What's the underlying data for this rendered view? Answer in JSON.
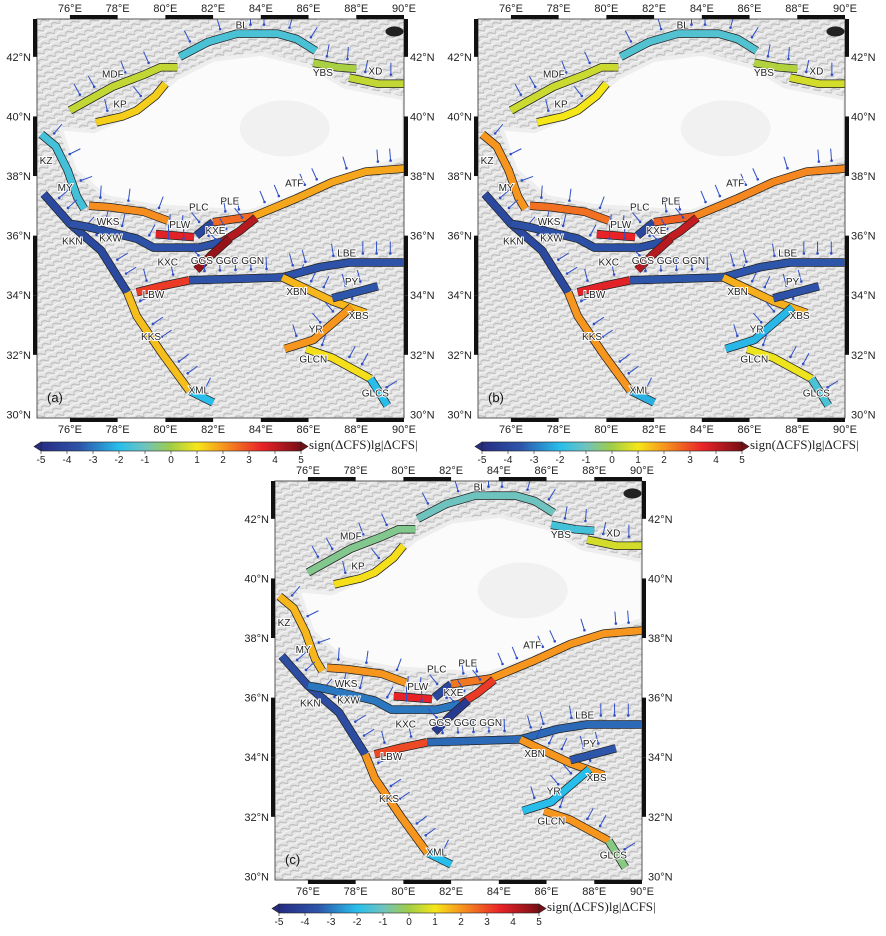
{
  "figure": {
    "lon_ticks": [
      "76°E",
      "78°E",
      "80°E",
      "82°E",
      "84°E",
      "86°E",
      "88°E",
      "90°E"
    ],
    "lat_ticks": [
      "30°N",
      "32°N",
      "34°N",
      "36°N",
      "38°N",
      "40°N",
      "42°N"
    ],
    "colorbar": {
      "label": "sign(ΔCFS)lg|ΔCFS|",
      "ticks": [
        "-5",
        "-4",
        "-3",
        "-2",
        "-1",
        "0",
        "1",
        "2",
        "3",
        "4",
        "5"
      ],
      "range": [
        -5,
        5
      ]
    },
    "colors": {
      "arrow": "#2f4fc9",
      "trace": "#222222",
      "frame": "#111111"
    }
  },
  "faults": [
    {
      "id": "BL",
      "label": "BL",
      "label_at": [
        83.2,
        42.95
      ],
      "path": [
        [
          80.6,
          42.0
        ],
        [
          81.8,
          42.5
        ],
        [
          83.0,
          42.78
        ],
        [
          84.7,
          42.78
        ],
        [
          85.5,
          42.6
        ],
        [
          86.3,
          42.2
        ]
      ]
    },
    {
      "id": "MDF",
      "label": "MDF",
      "label_at": [
        77.8,
        41.3
      ],
      "path": [
        [
          76.0,
          40.2
        ],
        [
          77.8,
          41.0
        ],
        [
          79.1,
          41.4
        ],
        [
          79.8,
          41.65
        ],
        [
          80.5,
          41.65
        ]
      ]
    },
    {
      "id": "KP",
      "label": "KP",
      "label_at": [
        78.1,
        40.3
      ],
      "path": [
        [
          77.1,
          39.8
        ],
        [
          78.2,
          40.0
        ],
        [
          78.8,
          40.2
        ],
        [
          79.6,
          40.7
        ],
        [
          80.0,
          41.1
        ]
      ]
    },
    {
      "id": "YBS",
      "label": "YBS",
      "label_at": [
        86.6,
        41.35
      ],
      "path": [
        [
          86.2,
          41.8
        ],
        [
          87.2,
          41.65
        ],
        [
          88.0,
          41.6
        ]
      ]
    },
    {
      "id": "XD",
      "label": "XD",
      "label_at": [
        88.8,
        41.4
      ],
      "path": [
        [
          87.7,
          41.3
        ],
        [
          88.9,
          41.1
        ],
        [
          90.0,
          41.1
        ]
      ]
    },
    {
      "id": "KZ",
      "label": "KZ",
      "label_at": [
        75.0,
        38.4
      ],
      "path": [
        [
          74.8,
          39.4
        ],
        [
          75.4,
          39.0
        ],
        [
          75.9,
          38.2
        ],
        [
          76.3,
          37.3
        ],
        [
          76.6,
          36.9
        ]
      ]
    },
    {
      "id": "MY",
      "label": "MY",
      "label_at": [
        75.8,
        37.5
      ],
      "path": []
    },
    {
      "id": "WKS",
      "label": "WKS",
      "label_at": [
        77.6,
        36.35
      ],
      "path": [
        [
          76.8,
          37.0
        ],
        [
          77.7,
          36.95
        ],
        [
          79.1,
          36.8
        ],
        [
          80.1,
          36.5
        ]
      ]
    },
    {
      "id": "PLW",
      "label": "PLW",
      "label_at": [
        80.6,
        36.25
      ],
      "path": [
        [
          79.6,
          36.05
        ],
        [
          81.2,
          35.95
        ]
      ]
    },
    {
      "id": "PLC",
      "label": "PLC",
      "label_at": [
        81.4,
        36.85
      ],
      "path": [
        [
          81.3,
          36.0
        ],
        [
          82.0,
          36.45
        ]
      ]
    },
    {
      "id": "PLE",
      "label": "PLE",
      "label_at": [
        82.7,
        37.05
      ],
      "path": [
        [
          82.0,
          36.45
        ],
        [
          83.7,
          36.65
        ]
      ]
    },
    {
      "id": "ATF",
      "label": "ATF",
      "label_at": [
        85.4,
        37.65
      ],
      "path": [
        [
          83.7,
          36.65
        ],
        [
          85.5,
          37.25
        ],
        [
          87.0,
          37.8
        ],
        [
          88.4,
          38.15
        ],
        [
          90.0,
          38.25
        ]
      ]
    },
    {
      "id": "KKN",
      "label": "KKN",
      "label_at": [
        76.1,
        35.7
      ],
      "path": [
        [
          74.9,
          37.4
        ],
        [
          76.0,
          36.4
        ],
        [
          77.3,
          35.5
        ],
        [
          78.4,
          34.1
        ]
      ]
    },
    {
      "id": "KXW",
      "label": "KXW",
      "label_at": [
        77.7,
        35.8
      ],
      "path": [
        [
          76.0,
          36.4
        ],
        [
          76.7,
          36.3
        ],
        [
          78.8,
          35.9
        ],
        [
          79.5,
          35.6
        ],
        [
          81.4,
          35.6
        ],
        [
          82.4,
          35.8
        ]
      ]
    },
    {
      "id": "KXE",
      "label": "KXE",
      "label_at": [
        82.1,
        36.05
      ],
      "path": [
        [
          82.4,
          35.8
        ],
        [
          83.1,
          36.15
        ],
        [
          83.8,
          36.6
        ]
      ]
    },
    {
      "id": "KXC",
      "label": "KXC",
      "label_at": [
        80.1,
        35.0
      ],
      "path": []
    },
    {
      "id": "GGS",
      "label": "GGS GGC GGN",
      "label_at": [
        82.6,
        35.05
      ],
      "path": [
        [
          81.3,
          34.85
        ],
        [
          82.0,
          35.4
        ],
        [
          82.7,
          35.9
        ]
      ]
    },
    {
      "id": "LBW",
      "label": "LBW",
      "label_at": [
        79.5,
        33.9
      ],
      "path": [
        [
          78.8,
          34.1
        ],
        [
          79.8,
          34.3
        ],
        [
          81.0,
          34.5
        ]
      ]
    },
    {
      "id": "LBE",
      "label": "LBE",
      "label_at": [
        87.6,
        35.3
      ],
      "path": [
        [
          81.0,
          34.5
        ],
        [
          84.9,
          34.6
        ],
        [
          86.5,
          34.95
        ],
        [
          87.7,
          35.1
        ],
        [
          90.0,
          35.1
        ]
      ]
    },
    {
      "id": "XBN",
      "label": "XBN",
      "label_at": [
        85.5,
        34.0
      ],
      "path": [
        [
          84.9,
          34.6
        ],
        [
          87.0,
          33.8
        ],
        [
          88.4,
          33.4
        ]
      ]
    },
    {
      "id": "PY",
      "label": "PY",
      "label_at": [
        87.8,
        34.35
      ],
      "path": [
        [
          87.0,
          33.9
        ],
        [
          88.9,
          34.3
        ]
      ]
    },
    {
      "id": "XBS",
      "label": "XBS",
      "label_at": [
        88.1,
        33.2
      ],
      "path": []
    },
    {
      "id": "YR",
      "label": "YR",
      "label_at": [
        86.3,
        32.75
      ],
      "path": [
        [
          85.0,
          32.2
        ],
        [
          86.2,
          32.5
        ],
        [
          87.8,
          33.6
        ]
      ]
    },
    {
      "id": "KKS",
      "label": "KKS",
      "label_at": [
        79.4,
        32.5
      ],
      "path": [
        [
          78.4,
          34.1
        ],
        [
          78.8,
          33.3
        ],
        [
          79.9,
          32.0
        ],
        [
          81.0,
          30.8
        ]
      ]
    },
    {
      "id": "XML",
      "label": "XML",
      "label_at": [
        81.4,
        30.7
      ],
      "path": [
        [
          81.0,
          30.8
        ],
        [
          82.0,
          30.4
        ]
      ]
    },
    {
      "id": "GLCN",
      "label": "GLCN",
      "label_at": [
        86.2,
        31.75
      ],
      "path": [
        [
          85.9,
          32.2
        ],
        [
          87.0,
          31.9
        ],
        [
          88.6,
          31.2
        ]
      ]
    },
    {
      "id": "GLCS",
      "label": "GLCS",
      "label_at": [
        88.8,
        30.6
      ],
      "path": [
        [
          88.6,
          31.2
        ],
        [
          89.3,
          30.3
        ]
      ]
    }
  ],
  "panels": [
    {
      "tag": "(a)",
      "values": {
        "BL": -1.5,
        "MDF": 0.4,
        "KP": 1.3,
        "YBS": 0.1,
        "XD": 0.4,
        "KZ": -1.6,
        "WKS": 2.1,
        "PLW": 3.6,
        "PLC": -4.0,
        "PLE": 2.6,
        "ATF": 1.8,
        "KKN": -3.9,
        "KXW": -3.6,
        "KXE": 4.2,
        "GGS": 4.6,
        "LBW": 3.2,
        "LBE": -3.6,
        "XBN": 1.6,
        "PY": -3.5,
        "YR": 2.0,
        "KKS": 1.5,
        "XML": -2.0,
        "GLCN": 1.1,
        "GLCS": -2.0
      }
    },
    {
      "tag": "(b)",
      "values": {
        "BL": -1.4,
        "MDF": 0.5,
        "KP": 1.0,
        "YBS": 0.2,
        "XD": 0.6,
        "KZ": 2.0,
        "WKS": 2.5,
        "PLW": 3.5,
        "PLC": -4.0,
        "PLE": 2.7,
        "ATF": 2.2,
        "KKN": -3.9,
        "KXW": -3.7,
        "KXE": 4.0,
        "GGS": 4.2,
        "LBW": 3.6,
        "LBE": -3.5,
        "XBN": 1.7,
        "PY": -3.6,
        "YR": -2.1,
        "KKS": 2.0,
        "XML": -2.2,
        "GLCN": 0.9,
        "GLCS": -1.5
      }
    },
    {
      "tag": "(c)",
      "values": {
        "BL": -1.0,
        "MDF": -0.6,
        "KP": 1.1,
        "YBS": -1.6,
        "XD": 0.6,
        "KZ": 1.6,
        "WKS": 2.0,
        "PLW": 3.5,
        "PLC": -4.0,
        "PLE": 2.4,
        "ATF": 2.0,
        "KKN": -3.8,
        "KXW": -3.0,
        "KXE": 3.2,
        "GGS": -4.5,
        "LBW": 3.0,
        "LBE": -3.2,
        "XBN": 2.0,
        "PY": -3.5,
        "YR": -2.0,
        "KKS": 2.0,
        "XML": -2.0,
        "GLCN": 2.0,
        "GLCS": -0.5
      }
    }
  ]
}
